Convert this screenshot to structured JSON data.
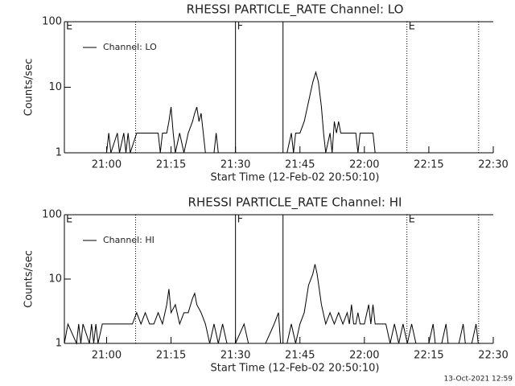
{
  "chart_data": [
    {
      "type": "line",
      "title": "RHESSI PARTICLE_RATE Channel: LO",
      "x_label": "Start Time (12-Feb-02 20:50:10)",
      "y_label": "Counts/sec",
      "log_scale": true,
      "legend": "upper left",
      "xlim": [
        1250.17,
        1350
      ],
      "ylim": [
        1,
        100
      ],
      "xticks": [
        {
          "value": 1260,
          "label": "21:00"
        },
        {
          "value": 1275,
          "label": "21:15"
        },
        {
          "value": 1290,
          "label": "21:30"
        },
        {
          "value": 1305,
          "label": "21:45"
        },
        {
          "value": 1320,
          "label": "22:00"
        },
        {
          "value": 1335,
          "label": "22:15"
        },
        {
          "value": 1350,
          "label": "22:30"
        }
      ],
      "yticks": [
        1,
        10,
        100
      ],
      "markers": [
        {
          "x": 1250.17,
          "label": "E",
          "style": "solid"
        },
        {
          "x": 1266.75,
          "style": "dotted"
        },
        {
          "x": 1290,
          "label": "F",
          "style": "solid"
        },
        {
          "x": 1301.06,
          "style": "solid"
        },
        {
          "x": 1329.9,
          "label": "E",
          "style": "dotted"
        },
        {
          "x": 1346.6,
          "style": "dotted"
        }
      ],
      "x": [
        1250.17,
        1260,
        1260.5,
        1261,
        1262.5,
        1263,
        1264,
        1264.5,
        1265,
        1265.5,
        1267,
        1272,
        1272.5,
        1273,
        1274,
        1274.5,
        1275,
        1275.5,
        1276,
        1277,
        1278,
        1279,
        1280,
        1280.5,
        1281,
        1281.5,
        1282,
        1282.5,
        1283,
        1285,
        1285.5,
        1286,
        1298,
        1302,
        1303,
        1303.5,
        1304,
        1305,
        1306,
        1307,
        1308,
        1308.7,
        1309.3,
        1310,
        1310.5,
        1311,
        1312,
        1312.5,
        1313,
        1313.5,
        1314,
        1314.5,
        1315,
        1316,
        1318,
        1318.5,
        1319,
        1322,
        1322.5,
        1323
      ],
      "series": [
        {
          "name": "Channel: LO",
          "color": "#000000",
          "values": [
            1,
            1,
            2,
            1,
            2,
            1,
            2,
            1,
            2,
            1,
            2,
            2,
            1,
            2,
            2,
            3,
            5,
            2,
            1,
            2,
            1,
            2,
            3,
            4,
            5,
            3,
            4,
            2,
            1,
            1,
            2,
            1,
            1,
            1,
            2,
            1,
            2,
            2,
            3,
            6,
            12,
            17,
            12,
            5,
            2,
            1,
            2,
            1,
            3,
            2,
            3,
            2,
            2,
            2,
            2,
            1,
            2,
            2,
            1,
            1
          ]
        }
      ]
    },
    {
      "type": "line",
      "title": "RHESSI PARTICLE_RATE Channel: HI",
      "x_label": "Start Time (12-Feb-02 20:50:10)",
      "y_label": "Counts/sec",
      "log_scale": true,
      "legend": "upper left",
      "xlim": [
        1250.17,
        1350
      ],
      "ylim": [
        1,
        100
      ],
      "xticks": [
        {
          "value": 1260,
          "label": "21:00"
        },
        {
          "value": 1275,
          "label": "21:15"
        },
        {
          "value": 1290,
          "label": "21:30"
        },
        {
          "value": 1305,
          "label": "21:45"
        },
        {
          "value": 1320,
          "label": "22:00"
        },
        {
          "value": 1335,
          "label": "22:15"
        },
        {
          "value": 1350,
          "label": "22:30"
        }
      ],
      "yticks": [
        1,
        10,
        100
      ],
      "markers": [
        {
          "x": 1250.17,
          "label": "E",
          "style": "solid"
        },
        {
          "x": 1266.75,
          "style": "dotted"
        },
        {
          "x": 1290,
          "label": "F",
          "style": "solid"
        },
        {
          "x": 1301.06,
          "style": "solid"
        },
        {
          "x": 1329.9,
          "label": "E",
          "style": "dotted"
        },
        {
          "x": 1346.6,
          "style": "dotted"
        }
      ],
      "x": [
        1250.17,
        1251,
        1253,
        1253.5,
        1254,
        1254.5,
        1256,
        1256.5,
        1257,
        1257.5,
        1258,
        1259,
        1266,
        1267,
        1268,
        1269,
        1270,
        1271,
        1272,
        1273,
        1274,
        1274.5,
        1275,
        1276,
        1277,
        1278,
        1279,
        1280,
        1280.5,
        1281,
        1282,
        1283,
        1284,
        1285,
        1286,
        1287,
        1288,
        1290,
        1292,
        1293,
        1297,
        1299,
        1300,
        1300.5,
        1302,
        1303,
        1304,
        1305,
        1306,
        1307,
        1308,
        1308.5,
        1309,
        1310,
        1311,
        1312,
        1313,
        1314,
        1315,
        1316,
        1316.5,
        1317,
        1317.5,
        1318,
        1318.5,
        1319,
        1320,
        1321,
        1321.5,
        1322,
        1322.5,
        1325,
        1326,
        1327,
        1328,
        1329,
        1330,
        1331,
        1332,
        1335,
        1336,
        1336.5,
        1338,
        1339,
        1339.5,
        1342,
        1343,
        1343.5,
        1345,
        1346,
        1346.5,
        1350
      ],
      "series": [
        {
          "name": "Channel: HI",
          "color": "#000000",
          "values": [
            1,
            2,
            1,
            2,
            1,
            2,
            1,
            2,
            1,
            2,
            1,
            2,
            2,
            3,
            2,
            3,
            2,
            2,
            3,
            2,
            4,
            7,
            3,
            4,
            2,
            3,
            3,
            5,
            6,
            4,
            3,
            2,
            1,
            2,
            1,
            2,
            1,
            1,
            2,
            1,
            1,
            2,
            3,
            1,
            1,
            2,
            1,
            2,
            3,
            8,
            12,
            17,
            12,
            4,
            2,
            3,
            2,
            3,
            2,
            3,
            2,
            4,
            2,
            2,
            3,
            2,
            2,
            4,
            2,
            4,
            2,
            2,
            1,
            2,
            1,
            2,
            1,
            2,
            1,
            1,
            2,
            1,
            1,
            2,
            1,
            1,
            2,
            1,
            1,
            2,
            1,
            1
          ]
        }
      ]
    }
  ],
  "footer": "13-Oct-2021 12:59"
}
